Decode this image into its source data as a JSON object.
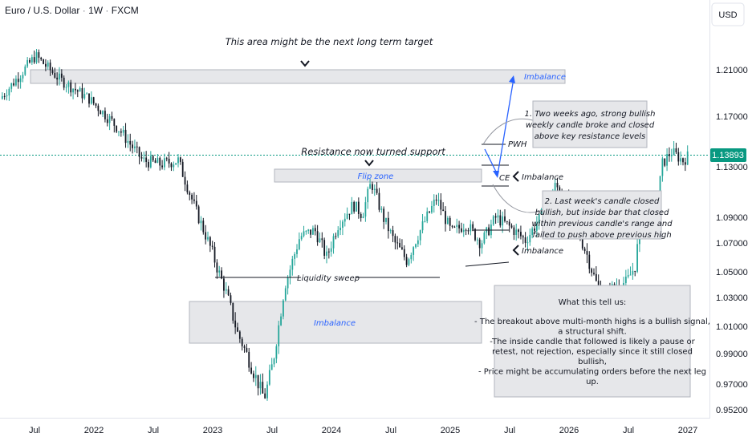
{
  "header": {
    "symbol": "Euro / U.S. Dollar",
    "interval": "1W",
    "exchange": "FXCM",
    "currency": "USD"
  },
  "colors": {
    "up": "#26a69a",
    "down": "#131722",
    "zone_fill": "#e6e7ea",
    "zone_border": "#b2b5be",
    "accent": "#2962ff",
    "price_line": "#089981",
    "price_label_bg": "#089981"
  },
  "chart_data": {
    "type": "candlestick",
    "y_ticks": [
      "1.21000",
      "1.17000",
      "1.13000",
      "1.09000",
      "1.07000",
      "1.05000",
      "1.03000",
      "1.01000",
      "0.99000",
      "0.97000",
      "0.95200"
    ],
    "x_ticks": [
      "Jul",
      "2022",
      "Jul",
      "2023",
      "Jul",
      "2024",
      "Jul",
      "2025",
      "Jul",
      "2026",
      "Jul",
      "2027"
    ],
    "last_price": "1.13893",
    "last_price_value": 1.13893,
    "anchors": [
      {
        "t": 0.0,
        "v": 1.185
      },
      {
        "t": 0.6,
        "v": 1.222
      },
      {
        "t": 1.0,
        "v": 1.202
      },
      {
        "t": 1.5,
        "v": 1.185
      },
      {
        "t": 2.0,
        "v": 1.16
      },
      {
        "t": 2.4,
        "v": 1.135
      },
      {
        "t": 2.7,
        "v": 1.132
      },
      {
        "t": 3.0,
        "v": 1.135
      },
      {
        "t": 3.3,
        "v": 1.095
      },
      {
        "t": 3.6,
        "v": 1.06
      },
      {
        "t": 3.8,
        "v": 1.035
      },
      {
        "t": 4.0,
        "v": 1.005
      },
      {
        "t": 4.2,
        "v": 0.985
      },
      {
        "t": 4.45,
        "v": 0.96
      },
      {
        "t": 4.6,
        "v": 0.985
      },
      {
        "t": 4.8,
        "v": 1.04
      },
      {
        "t": 5.05,
        "v": 1.075
      },
      {
        "t": 5.3,
        "v": 1.08
      },
      {
        "t": 5.5,
        "v": 1.06
      },
      {
        "t": 5.7,
        "v": 1.085
      },
      {
        "t": 5.95,
        "v": 1.1
      },
      {
        "t": 6.1,
        "v": 1.092
      },
      {
        "t": 6.25,
        "v": 1.118
      },
      {
        "t": 6.45,
        "v": 1.09
      },
      {
        "t": 6.65,
        "v": 1.07
      },
      {
        "t": 6.85,
        "v": 1.058
      },
      {
        "t": 7.1,
        "v": 1.082
      },
      {
        "t": 7.35,
        "v": 1.105
      },
      {
        "t": 7.6,
        "v": 1.078
      },
      {
        "t": 7.85,
        "v": 1.085
      },
      {
        "t": 8.1,
        "v": 1.07
      },
      {
        "t": 8.35,
        "v": 1.09
      },
      {
        "t": 8.6,
        "v": 1.082
      },
      {
        "t": 8.85,
        "v": 1.072
      },
      {
        "t": 9.1,
        "v": 1.09
      },
      {
        "t": 9.35,
        "v": 1.115
      },
      {
        "t": 9.5,
        "v": 1.108
      },
      {
        "t": 9.7,
        "v": 1.082
      },
      {
        "t": 9.9,
        "v": 1.06
      },
      {
        "t": 10.05,
        "v": 1.04
      },
      {
        "t": 10.2,
        "v": 1.03
      },
      {
        "t": 10.35,
        "v": 1.04
      },
      {
        "t": 10.55,
        "v": 1.042
      },
      {
        "t": 10.7,
        "v": 1.055
      },
      {
        "t": 10.78,
        "v": 1.085
      },
      {
        "t": 10.9,
        "v": 1.082
      },
      {
        "t": 11.05,
        "v": 1.095
      },
      {
        "t": 11.15,
        "v": 1.132
      },
      {
        "t": 11.3,
        "v": 1.142
      },
      {
        "t": 11.5,
        "v": 1.135
      },
      {
        "t": 11.6,
        "v": 1.139
      }
    ]
  },
  "annotations": {
    "top_note": "This area might be the next long term target",
    "imbalance_top": "Imbalance",
    "resistance_note": "Resistance now turned support",
    "flip_zone": "Flip zone",
    "pwh": "PWH",
    "ce": "CE",
    "imbalance_right_1": "Imbalance",
    "imbalance_right_2": "Imbalance",
    "liquidity_sweep": "Liquidity sweep",
    "imbalance_bottom": "Imbalance",
    "box1_lines": [
      "1. Two weeks ago, strong bullish",
      "weekly candle broke and closed",
      "above key resistance levels"
    ],
    "box2_lines": [
      "2. Last week's candle closed",
      "bullish, but inside bar that closed",
      "within previous candle's range and",
      "failed to push above previous high"
    ],
    "summary_title": "What this tell us:",
    "summary_lines": [
      "- The breakout above multi-month highs is a bullish signal,",
      "a structural shift.",
      "-The inside candle that followed is likely a pause or",
      "retest, not rejection, especially since it still closed",
      "bullish,",
      "- Price might be accumulating orders before the next leg",
      "up."
    ]
  }
}
